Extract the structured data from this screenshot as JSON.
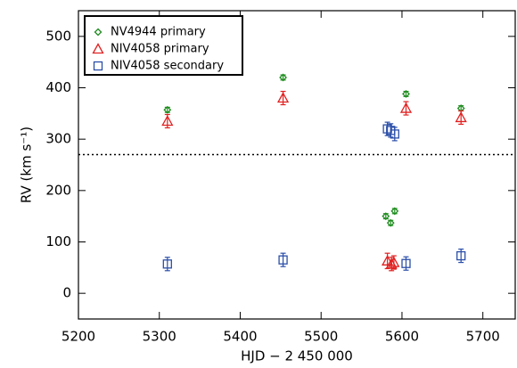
{
  "chart_data": {
    "type": "scatter",
    "x_label": "HJD − 2 450 000",
    "y_label": "RV (km s⁻¹)",
    "xlim": [
      5200,
      5740
    ],
    "xticks": [
      5200,
      5300,
      5400,
      5500,
      5600,
      5700
    ],
    "ylim": [
      -50,
      550
    ],
    "yticks": [
      0,
      100,
      200,
      300,
      400,
      500
    ],
    "hline": 270,
    "legend": "upper-left",
    "series": [
      {
        "name": "NV4944 primary",
        "color": "#1e8c1e",
        "marker": "diamond",
        "x": [
          5310,
          5453,
          5580,
          5586,
          5591,
          5605,
          5673
        ],
        "values": [
          357,
          420,
          150,
          137,
          160,
          388,
          360
        ],
        "errors": [
          5,
          5,
          5,
          5,
          5,
          5,
          5
        ]
      },
      {
        "name": "NIV4058 primary",
        "color": "#e02020",
        "marker": "triangle",
        "x": [
          5310,
          5453,
          5582,
          5587,
          5590,
          5605,
          5673
        ],
        "values": [
          335,
          380,
          63,
          57,
          60,
          360,
          342
        ],
        "errors": [
          13,
          13,
          15,
          13,
          13,
          13,
          13
        ]
      },
      {
        "name": "NIV4058 secondary",
        "color": "#2a4ea8",
        "marker": "square",
        "x": [
          5310,
          5453,
          5582,
          5586,
          5591,
          5605,
          5673
        ],
        "values": [
          57,
          65,
          320,
          317,
          310,
          58,
          73
        ],
        "errors": [
          13,
          13,
          13,
          13,
          13,
          13,
          13
        ]
      }
    ]
  }
}
